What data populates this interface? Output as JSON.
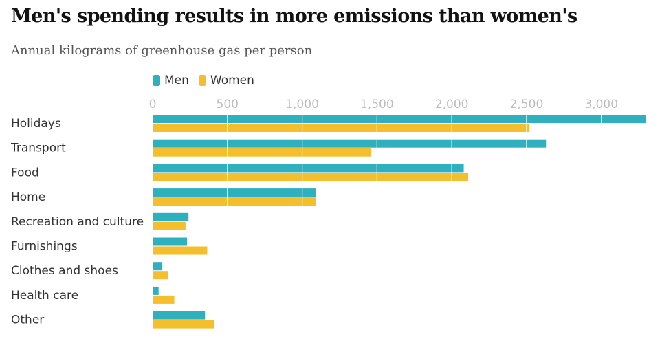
{
  "title": "Men's spending results in more emissions than women's",
  "subtitle": "Annual kilograms of greenhouse gas per person",
  "colors": {
    "men": "#2eb0be",
    "women": "#f5be2c",
    "grid": "#ffffff",
    "tick": "#bdbdbd"
  },
  "chart_data": {
    "type": "bar",
    "orientation": "horizontal",
    "categories": [
      "Holidays",
      "Transport",
      "Food",
      "Home",
      "Recreation and culture",
      "Furnishings",
      "Clothes and shoes",
      "Health care",
      "Other"
    ],
    "series": [
      {
        "name": "Men",
        "values": [
          3300,
          2630,
          2080,
          1090,
          240,
          230,
          65,
          40,
          350
        ]
      },
      {
        "name": "Women",
        "values": [
          2520,
          1460,
          2110,
          1090,
          220,
          365,
          105,
          145,
          410
        ]
      }
    ],
    "xticks": [
      0,
      500,
      1000,
      1500,
      2000,
      2500,
      3000
    ],
    "xtick_labels": [
      "0",
      "500",
      "1,000",
      "1,500",
      "2,000",
      "2,500",
      "3,000"
    ],
    "xlim": [
      0,
      3300
    ],
    "legend_position": "top-left",
    "grid": true
  }
}
